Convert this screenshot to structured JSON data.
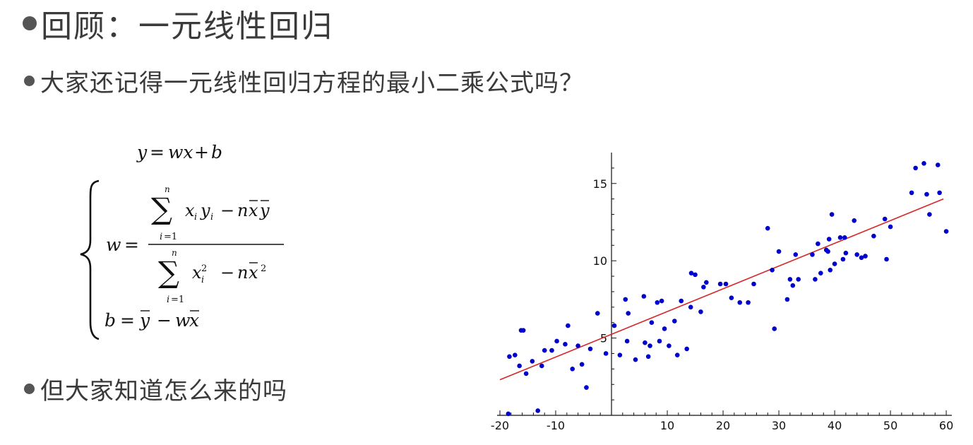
{
  "slide": {
    "title": "回顾：一元线性回归",
    "question1": "大家还记得一元线性回归方程的最小二乘公式吗？",
    "question2": "但大家知道怎么来的吗"
  },
  "icons": {
    "bullet": "bullet-dot-icon"
  },
  "colors": {
    "text": "#3a3a3a",
    "bullet": "#555555",
    "points": "#0000cc",
    "line": "#d62828"
  },
  "formula": {
    "line1": "y = wx + b",
    "w_numerator": "Σ(i=1..n) x_i y_i − n x̄ ȳ",
    "w_denominator": "Σ(i=1..n) x_i² − n x̄²",
    "b_line": "b = ȳ − w x̄"
  },
  "chart_data": {
    "type": "scatter",
    "title": "",
    "xlabel": "",
    "ylabel": "",
    "xlim": [
      -20,
      61
    ],
    "ylim": [
      0,
      17
    ],
    "x_ticks": [
      -20,
      -10,
      10,
      20,
      30,
      40,
      50,
      60
    ],
    "x_tick_labels": [
      "-20",
      "-10",
      "10",
      "20",
      "30",
      "40",
      "50",
      "60"
    ],
    "y_ticks": [
      5,
      10,
      15
    ],
    "y_tick_labels": [
      "5",
      "10",
      "15"
    ],
    "grid": false,
    "legend": "none",
    "fit_line": {
      "x": [
        -20,
        59.5
      ],
      "y": [
        2.3,
        14.0
      ]
    },
    "points": {
      "x": [
        -18.5,
        -18.3,
        -17.3,
        -16.5,
        -16.2,
        -15.8,
        -15.3,
        -14.2,
        -13.2,
        -12.5,
        -12.0,
        -10.7,
        -9.8,
        -8.3,
        -7.8,
        -7.0,
        -6.0,
        -5.3,
        -4.5,
        -3.8,
        -2.5,
        -1.0,
        0.5,
        1.5,
        2.5,
        2.8,
        3.0,
        4.3,
        5.8,
        6.0,
        6.6,
        6.9,
        7.2,
        8.2,
        8.6,
        9.0,
        9.5,
        10.3,
        11.3,
        11.8,
        12.5,
        13.5,
        14.2,
        14.3,
        15.0,
        16.0,
        16.5,
        17.0,
        19.5,
        20.5,
        21.5,
        23.0,
        24.5,
        25.5,
        28.0,
        28.8,
        29.2,
        30.0,
        31.5,
        32.0,
        32.5,
        33.0,
        33.5,
        36.0,
        36.5,
        37.0,
        37.5,
        38.5,
        38.8,
        39.0,
        39.2,
        39.5,
        40.0,
        41.0,
        41.5,
        41.8,
        42.0,
        43.5,
        44.0,
        44.8,
        45.5,
        47.0,
        49.0,
        49.3,
        50.0,
        53.8,
        54.5,
        56.0,
        56.5,
        57.0,
        58.5,
        58.8,
        60.0
      ],
      "y": [
        0.1,
        3.8,
        3.9,
        3.2,
        5.5,
        5.5,
        2.7,
        3.5,
        0.3,
        3.2,
        4.2,
        4.2,
        4.8,
        4.6,
        5.8,
        3.0,
        4.5,
        3.3,
        1.8,
        4.3,
        6.6,
        4.0,
        5.8,
        3.9,
        7.5,
        4.8,
        6.6,
        3.6,
        7.7,
        4.7,
        3.8,
        4.5,
        6.0,
        7.3,
        4.8,
        7.4,
        5.6,
        4.5,
        6.1,
        3.9,
        7.4,
        4.3,
        7.0,
        9.2,
        9.1,
        6.7,
        8.3,
        8.6,
        8.5,
        8.5,
        7.6,
        7.3,
        7.3,
        8.5,
        12.1,
        9.4,
        5.6,
        10.6,
        7.5,
        8.8,
        8.4,
        10.4,
        8.8,
        10.4,
        8.8,
        11.1,
        9.2,
        10.7,
        10.6,
        11.4,
        9.4,
        13.0,
        9.8,
        11.5,
        10.1,
        11.5,
        10.5,
        12.6,
        10.4,
        10.2,
        10.3,
        11.6,
        12.7,
        10.1,
        12.2,
        14.4,
        16.0,
        16.3,
        14.3,
        13.0,
        16.2,
        14.4,
        11.9
      ]
    }
  }
}
